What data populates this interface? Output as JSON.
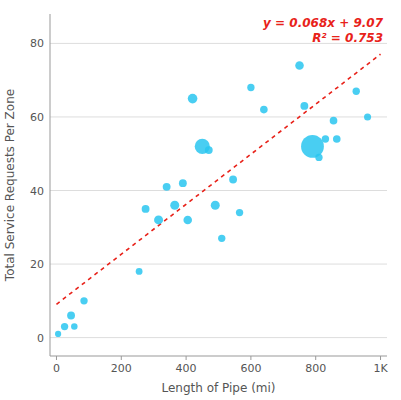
{
  "chart_data": {
    "type": "scatter",
    "xlabel": "Length of Pipe (mi)",
    "ylabel": "Total Service Requests Per Zone",
    "xlim": [
      -20,
      1020
    ],
    "ylim": [
      -5,
      88
    ],
    "xticks": [
      0,
      200,
      400,
      600,
      800,
      {
        "value": 1000,
        "label": "1K"
      }
    ],
    "yticks": [
      0,
      20,
      40,
      60,
      80
    ],
    "grid": "y",
    "annotations": [
      "y = 0.068x + 9.07",
      "R² = 0.753"
    ],
    "series": [
      {
        "type": "scatter",
        "color": "#29c6f0",
        "x": [
          5,
          25,
          45,
          55,
          85,
          255,
          275,
          315,
          340,
          365,
          390,
          405,
          420,
          450,
          470,
          490,
          510,
          545,
          565,
          600,
          640,
          750,
          765,
          790,
          810,
          830,
          855,
          865,
          925,
          960
        ],
        "values": [
          1,
          3,
          6,
          3,
          10,
          18,
          35,
          32,
          41,
          36,
          42,
          32,
          65,
          52,
          51,
          36,
          27,
          43,
          34,
          68,
          62,
          74,
          63,
          52,
          49,
          54,
          59,
          54,
          67,
          60
        ],
        "sizes": [
          20,
          28,
          32,
          22,
          28,
          24,
          32,
          42,
          32,
          42,
          32,
          38,
          48,
          120,
          32,
          42,
          28,
          32,
          28,
          28,
          30,
          38,
          32,
          270,
          28,
          28,
          30,
          30,
          28,
          26
        ]
      },
      {
        "type": "line",
        "color": "#e8221a",
        "line_style": "dashed",
        "x": [
          0,
          1000
        ],
        "values": [
          9.07,
          77.07
        ]
      }
    ]
  }
}
